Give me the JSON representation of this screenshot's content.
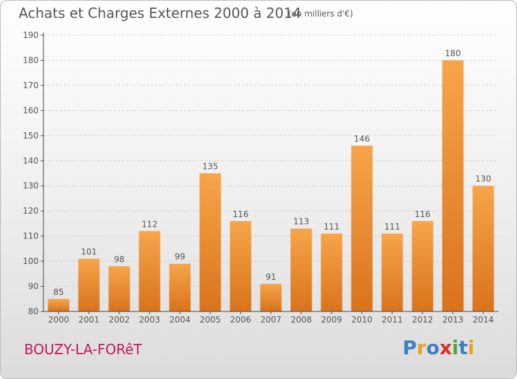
{
  "title": "Achats et Charges Externes 2000 à 2014",
  "subtitle": "(en milliers d'€)",
  "city": "BOUZY-LA-FORêT",
  "logo": {
    "text": "Proxiti",
    "letters": [
      {
        "ch": "P",
        "color": "#3f7fc1"
      },
      {
        "ch": "r",
        "color": "#e8a21b"
      },
      {
        "ch": "o",
        "color": "#3f7fc1"
      },
      {
        "ch": "x",
        "color": "#d9312b"
      },
      {
        "ch": "i",
        "color": "#4fa83d"
      },
      {
        "ch": "t",
        "color": "#3f7fc1"
      },
      {
        "ch": "i",
        "color": "#e8a21b"
      }
    ]
  },
  "colors": {
    "bar_light": "#f7a54a",
    "bar_dark": "#d9731c",
    "axis": "#444444",
    "grid": "#cccccc",
    "text": "#555555",
    "city": "#c2185b"
  },
  "chart_data": {
    "type": "bar",
    "categories": [
      "2000",
      "2001",
      "2002",
      "2003",
      "2004",
      "2005",
      "2006",
      "2007",
      "2008",
      "2009",
      "2010",
      "2011",
      "2012",
      "2013",
      "2014"
    ],
    "values": [
      85,
      101,
      98,
      112,
      99,
      135,
      116,
      91,
      113,
      111,
      146,
      111,
      116,
      180,
      130
    ],
    "yticks": [
      80,
      90,
      100,
      110,
      120,
      130,
      140,
      150,
      160,
      170,
      180,
      190
    ],
    "ylim": [
      80,
      190
    ],
    "grid": "horizontal dashed",
    "xlabel": "",
    "ylabel": ""
  }
}
